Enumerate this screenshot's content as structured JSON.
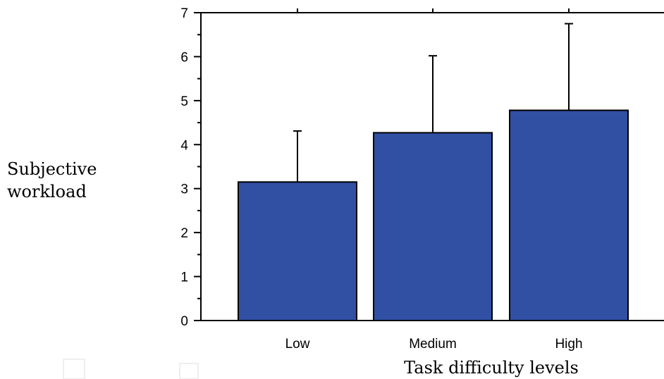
{
  "chart_data": {
    "type": "bar",
    "title": "",
    "xlabel": "Task difficulty levels",
    "ylabel_lines": [
      "Subjective",
      "workload"
    ],
    "categories": [
      "Low",
      "Medium",
      "High"
    ],
    "values": [
      3.15,
      4.27,
      4.78
    ],
    "error_upper": [
      4.31,
      6.02,
      6.75
    ],
    "ylim": [
      0,
      7
    ],
    "yticks": [
      "0",
      "1",
      "2",
      "3",
      "4",
      "5",
      "6",
      "7"
    ],
    "bar_color": "#3150a3",
    "bar_edge_color": "#000000",
    "grid": false,
    "legend": "none"
  }
}
